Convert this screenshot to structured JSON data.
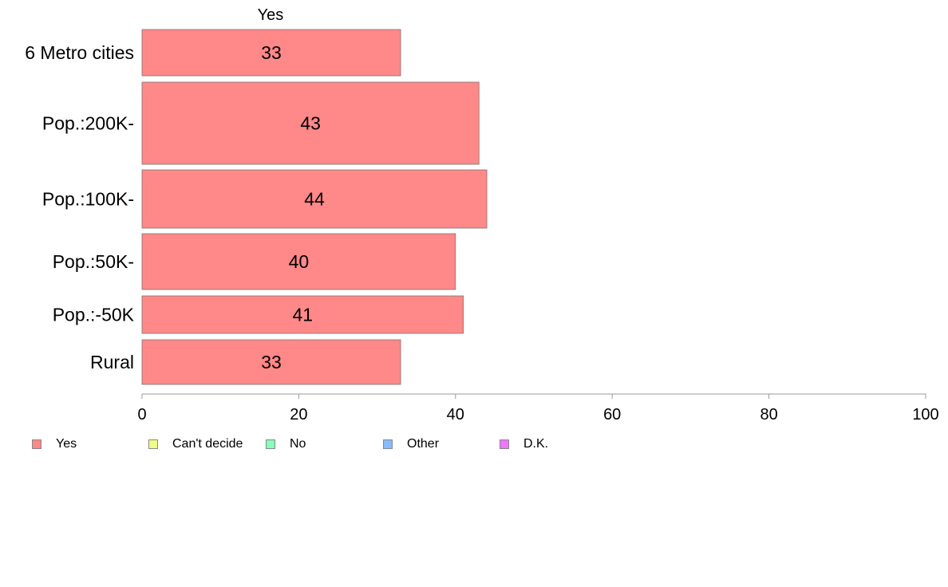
{
  "chart_data": {
    "type": "bar",
    "orientation": "horizontal",
    "title": "Yes",
    "categories": [
      "6 Metro cities",
      "Pop.:200K-",
      "Pop.:100K-",
      "Pop.:50K-",
      "Pop.:-50K",
      "Rural"
    ],
    "series": [
      {
        "name": "Yes",
        "values": [
          33,
          43,
          44,
          40,
          41,
          33
        ],
        "color": "#ff8888"
      }
    ],
    "xlim": [
      0,
      100
    ],
    "xticks": [
      0,
      20,
      40,
      60,
      80,
      100
    ],
    "grid": false,
    "legend_position": "bottom",
    "legend": [
      {
        "label": "Yes",
        "color": "#ff8888"
      },
      {
        "label": "Can't decide",
        "color": "#eeff88"
      },
      {
        "label": "No",
        "color": "#88ffbb"
      },
      {
        "label": "Other",
        "color": "#88bbff"
      },
      {
        "label": "D.K.",
        "color": "#ee77ff"
      }
    ]
  }
}
